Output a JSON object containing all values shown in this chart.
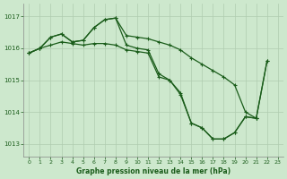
{
  "background_color": "#cde8cd",
  "grid_color": "#b0ccb0",
  "line_color": "#1a5c1a",
  "marker": "+",
  "marker_size": 3,
  "marker_lw": 0.8,
  "linewidth": 0.9,
  "xlabel": "Graphe pression niveau de la mer (hPa)",
  "xlabel_fontsize": 5.5,
  "xlim": [
    -0.5,
    23.5
  ],
  "ylim": [
    1012.6,
    1017.4
  ],
  "yticks": [
    1013,
    1014,
    1015,
    1016,
    1017
  ],
  "ytick_fontsize": 5,
  "xticks": [
    0,
    1,
    2,
    3,
    4,
    5,
    6,
    7,
    8,
    9,
    10,
    11,
    12,
    13,
    14,
    15,
    16,
    17,
    18,
    19,
    20,
    21,
    22,
    23
  ],
  "xtick_fontsize": 4.5,
  "series1_x": [
    0,
    1,
    2,
    3,
    4,
    5,
    6,
    7,
    8,
    9,
    10,
    11,
    12,
    13,
    14,
    15,
    16,
    17,
    18,
    19,
    20,
    21,
    22
  ],
  "series1_y": [
    1015.85,
    1016.0,
    1016.35,
    1016.45,
    1016.2,
    1016.25,
    1016.65,
    1016.9,
    1016.95,
    1016.4,
    1016.35,
    1016.3,
    1016.2,
    1016.1,
    1015.95,
    1015.7,
    1015.5,
    1015.3,
    1015.1,
    1014.85,
    1014.0,
    1013.8,
    1015.6
  ],
  "series2_x": [
    0,
    1,
    2,
    3,
    4,
    5,
    6,
    7,
    8,
    9,
    10,
    11,
    12,
    13,
    14,
    15,
    16,
    17,
    18,
    19,
    20,
    21
  ],
  "series2_y": [
    1015.85,
    1016.0,
    1016.35,
    1016.45,
    1016.2,
    1016.25,
    1016.65,
    1016.9,
    1016.95,
    1016.1,
    1016.0,
    1015.95,
    1015.2,
    1015.0,
    1014.55,
    1013.65,
    1013.5,
    1013.15,
    1013.15,
    1013.35,
    1013.85,
    1013.8
  ],
  "series3_x": [
    0,
    1,
    2,
    3,
    4,
    5,
    6,
    7,
    8,
    9,
    10,
    11,
    12,
    13,
    14,
    15,
    16,
    17,
    18,
    19,
    20,
    21,
    22
  ],
  "series3_y": [
    1015.85,
    1016.0,
    1016.1,
    1016.2,
    1016.15,
    1016.1,
    1016.15,
    1016.15,
    1016.1,
    1015.95,
    1015.9,
    1015.85,
    1015.1,
    1015.0,
    1014.6,
    1013.65,
    1013.5,
    1013.15,
    1013.15,
    1013.35,
    1013.85,
    1013.8,
    1015.6
  ]
}
